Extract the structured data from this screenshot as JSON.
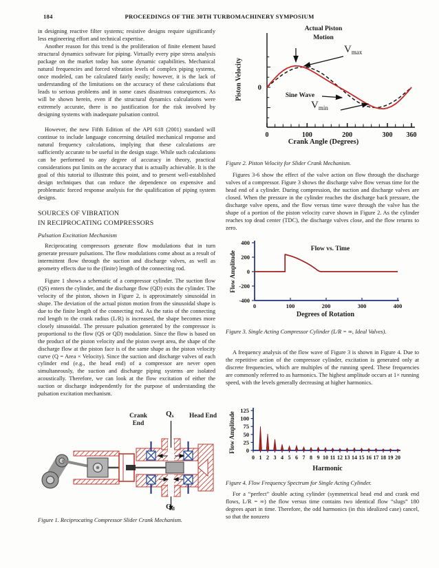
{
  "page_number": "184",
  "header_title": "PROCEEDINGS OF THE 30TH TURBOMACHINERY SYMPOSIUM",
  "left_column": {
    "para1": "in designing reactive filter systems; resistive designs require significantly less engineering effort and technical expertise.",
    "para2": "Another reason for this trend is the proliferation of finite element based structural dynamics software for piping. Virtually every pipe stress analysis package on the market today has some dynamic capabilities. Mechanical natural frequencies and forced vibration levels of complex piping systems, once modeled, can be calculated fairly easily; however, it is the lack of understanding of the limitations on the accuracy of these calculations that leads to serious problems and in some cases disastrous consequences. As will be shown herein, even if the structural dynamics calculations were extremely accurate, there is no justification for the risk involved by designing systems with inadequate pulsation control.",
    "para3": "However, the new Fifth Edition of the API 618 (2001) standard will continue to include language concerning detailed mechanical response and natural frequency calculations, implying that these calculations are sufficiently accurate to be useful in the design stage. While such calculations can be performed to any degree of accuracy in theory, practical considerations put limits on the accuracy that is actually achievable. It is the goal of this tutorial to illustrate this point, and to present well-established design techniques that can reduce the dependence on expensive and problematic forced response analysis for the qualification of piping system designs.",
    "heading_line1": "SOURCES OF VIBRATION",
    "heading_line2": "IN RECIPROCATING COMPRESSORS",
    "subheading": "Pulsation Excitation Mechanism",
    "para4": "Reciprocating compressors generate flow modulations that in turn generate pressure pulsations. The flow modulations come about as a result of intermittent flow through the suction and discharge valves, as well as geometry effects due to the (finite) length of the connecting rod.",
    "para5": "Figure 1 shows a schematic of a compressor cylinder. The suction flow (QS) enters the cylinder, and the discharge flow (QD) exits the cylinder. The velocity of the piston, shown in Figure 2, is approximately sinusoidal in shape. The deviation of the actual piston motion from the sinusoidal shape is due to the finite length of the connecting rod. As the ratio of the connecting rod length to the crank radius (L/R) is increased, the shape becomes more closely sinusoidal. The pressure pulsation generated by the compressor is proportional to the flow (QS or QD) modulation. Since the flow is based on the product of the piston velocity and the piston swept area, the shape of the discharge flow at the piston face is of the same shape as the piston velocity curve (Q = Area × Velocity). Since the suction and discharge valves of each cylinder end (e.g., the head end) of a compressor are never open simultaneously, the suction and discharge piping systems are isolated acoustically. Therefore, we can look at the flow excitation of either the suction or discharge independently for the purpose of understanding the pulsation excitation mechanism.",
    "figure1": {
      "label_crank_end": "Crank End",
      "label_head_end": "Head End",
      "flow_in_main": "Q",
      "flow_in_sub": "s",
      "flow_out_main": "Q",
      "flow_out_sub": "d",
      "caption": "Figure 1. Reciprocating Compressor Slider Crank Mechanism."
    }
  },
  "right_column": {
    "para1": "Figures 3-6 show the effect of the valve action on flow through the discharge valves of a compressor. Figure 3 shows the discharge valve flow versus time for the head end of a cylinder. During compression, the suction and discharge valves are closed. When the pressure in the cylinder reaches the discharge back pressure, the discharge valve opens, and the flow versus time wave through the valve has the shape of a portion of the piston velocity curve shown in Figure 2. As the cylinder reaches top dead center (TDC), the discharge valves close, and the flow returns to zero.",
    "para2": "A frequency analysis of the flow wave of Figure 3 is shown in Figure 4. Due to the repetitive action of the compressor cylinder, excitation is generated only at discrete frequencies, which are multiples of the running speed. These frequencies are commonly referred to as harmonics. The highest amplitude occurs at 1× running speed, with the levels generally decreasing at higher harmonics.",
    "para3": "For a “perfect” double acting cylinder (symmetrical head end and crank end flows, L/R = ∞) the flow versus time contains two identical flow “slugs” 180 degrees apart in time. Therefore, the odd harmonics (in this idealized case) cancel, so that the nonzero"
  },
  "chart_data": [
    {
      "name": "figure2",
      "type": "line",
      "xlabel": "Crank Angle (Degrees)",
      "ylabel": "Piston Velocity",
      "x_ticks": [
        0,
        100,
        200,
        300,
        360
      ],
      "x_minor_step": 20,
      "zero_label": "0",
      "xlim": [
        0,
        360
      ],
      "ylim": [
        -1.6,
        1.6
      ],
      "x_step": 10,
      "grid": false,
      "series": [
        {
          "name": "Sine Wave",
          "style": "dashed",
          "color": "#151515",
          "y": [
            0,
            0.174,
            0.342,
            0.5,
            0.643,
            0.766,
            0.866,
            0.94,
            0.985,
            1,
            0.985,
            0.94,
            0.866,
            0.766,
            0.643,
            0.5,
            0.342,
            0.174,
            0,
            -0.174,
            -0.342,
            -0.5,
            -0.643,
            -0.766,
            -0.866,
            -0.94,
            -0.985,
            -1,
            -0.985,
            -0.94,
            -0.866,
            -0.766,
            -0.643,
            -0.5,
            -0.342,
            -0.174,
            0
          ]
        },
        {
          "name": "Actual Piston Motion",
          "style": "solid",
          "color": "#c52a2a",
          "y": [
            0,
            0.236,
            0.458,
            0.656,
            0.82,
            0.943,
            1.022,
            1.056,
            1.046,
            1,
            0.923,
            0.824,
            0.71,
            0.589,
            0.466,
            0.344,
            0.226,
            0.112,
            0,
            -0.112,
            -0.226,
            -0.344,
            -0.466,
            -0.589,
            -0.71,
            -0.824,
            -0.923,
            -1,
            -1.046,
            -1.056,
            -1.022,
            -0.943,
            -0.82,
            -0.656,
            -0.458,
            -0.236,
            0
          ]
        }
      ],
      "annotations": {
        "title_line1": "Actual Piston",
        "title_line2": "Motion",
        "vmax_main": "V",
        "vmax_sub": "max",
        "sine": "Sine Wave",
        "vmin_main": "V",
        "vmin_sub": "min"
      },
      "caption": "Figure 2. Piston Velocity for Slider Crank Mechanism."
    },
    {
      "name": "figure3",
      "type": "line",
      "title": "Flow vs. Time",
      "xlabel": "Degrees of Rotation",
      "ylabel": "Flow Amplitude",
      "x_ticks": [
        0,
        100,
        200,
        300,
        400
      ],
      "y_ticks": [
        400,
        200,
        0,
        -200,
        -400
      ],
      "xlim": [
        0,
        400
      ],
      "ylim": [
        -400,
        400
      ],
      "axis_color": "#1c2f7d",
      "grid": false,
      "series": [
        {
          "name": "Discharge valve flow",
          "color": "#a02020",
          "points": [
            [
              0,
              0
            ],
            [
              85,
              0
            ],
            [
              85,
              238
            ],
            [
              100,
              218
            ],
            [
              115,
              192
            ],
            [
              130,
              158
            ],
            [
              145,
              120
            ],
            [
              158,
              82
            ],
            [
              168,
              48
            ],
            [
              176,
              18
            ],
            [
              181,
              5
            ],
            [
              186,
              0
            ],
            [
              400,
              0
            ]
          ]
        }
      ],
      "caption": "Figure 3. Single Acting Compressor Cylinder (L/R = ∞, Ideal Valves)."
    },
    {
      "name": "figure4",
      "type": "spike",
      "xlabel": "Harmonic",
      "ylabel": "Flow Amplitude",
      "x_ticks": [
        0,
        1,
        2,
        3,
        4,
        5,
        6,
        7,
        8,
        9,
        10,
        11,
        12,
        13,
        14,
        15,
        16,
        17,
        18,
        19,
        20
      ],
      "y_ticks": [
        0,
        25,
        50,
        75,
        100,
        125
      ],
      "xlim": [
        0,
        20
      ],
      "ylim": [
        0,
        125
      ],
      "axis_color": "#1c2f7d",
      "spike_color": "#b52424",
      "spike_edge": "#7c1616",
      "harmonics": [
        1,
        2,
        3,
        4,
        5,
        6,
        7,
        8,
        9,
        10,
        11,
        12,
        13,
        14,
        15,
        16,
        17,
        18,
        19,
        20
      ],
      "values": [
        75,
        52,
        35,
        19,
        14,
        15,
        11,
        9,
        10,
        9,
        7,
        6,
        7,
        8,
        7,
        6,
        6,
        5,
        5,
        4
      ],
      "caption": "Figure 4. Flow Frequency Spectrum for Single Acting Cylinder."
    }
  ]
}
